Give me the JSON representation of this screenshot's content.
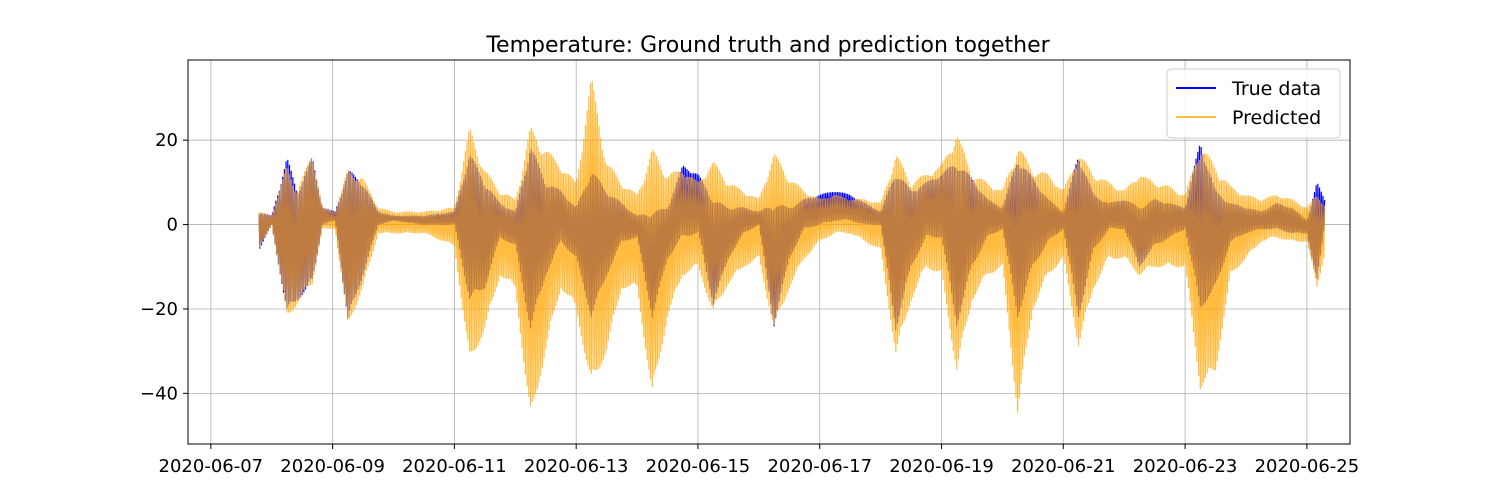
{
  "chart_data": {
    "type": "line",
    "title": "Temperature: Ground truth and prediction together",
    "xlabel": "",
    "ylabel": "",
    "x_range": [
      "2020-06-06T15:00",
      "2020-06-25T17:00"
    ],
    "ylim": [
      -52,
      39
    ],
    "grid": true,
    "legend_position": "top-right",
    "x_ticks": [
      "2020-06-07",
      "2020-06-09",
      "2020-06-11",
      "2020-06-13",
      "2020-06-15",
      "2020-06-17",
      "2020-06-19",
      "2020-06-21",
      "2020-06-23",
      "2020-06-25"
    ],
    "y_ticks": [
      20,
      0,
      -20,
      -40
    ],
    "y_tick_labels": [
      "20",
      "0",
      "−20",
      "−40"
    ],
    "series": [
      {
        "name": "True data",
        "color": "#0000ff",
        "envelope": {
          "x": [
            "2020-06-07T19:00",
            "2020-06-08T00:00",
            "2020-06-08T06:00",
            "2020-06-08T10:00",
            "2020-06-08T16:00",
            "2020-06-08T20:00",
            "2020-06-09T01:00",
            "2020-06-09T06:00",
            "2020-06-09T12:00",
            "2020-06-09T18:00",
            "2020-06-10T00:00",
            "2020-06-10T12:00",
            "2020-06-11T00:00",
            "2020-06-11T06:00",
            "2020-06-11T12:00",
            "2020-06-11T18:00",
            "2020-06-12T00:00",
            "2020-06-12T06:00",
            "2020-06-12T12:00",
            "2020-06-12T18:00",
            "2020-06-13T00:00",
            "2020-06-13T06:00",
            "2020-06-13T12:00",
            "2020-06-13T18:00",
            "2020-06-14T00:00",
            "2020-06-14T06:00",
            "2020-06-14T12:00",
            "2020-06-14T18:00",
            "2020-06-15T00:00",
            "2020-06-15T06:00",
            "2020-06-15T12:00",
            "2020-06-15T18:00",
            "2020-06-16T00:00",
            "2020-06-16T06:00",
            "2020-06-16T12:00",
            "2020-06-16T18:00",
            "2020-06-17T00:00",
            "2020-06-17T06:00",
            "2020-06-17T12:00",
            "2020-06-17T18:00",
            "2020-06-18T00:00",
            "2020-06-18T06:00",
            "2020-06-18T12:00",
            "2020-06-18T18:00",
            "2020-06-19T00:00",
            "2020-06-19T06:00",
            "2020-06-19T12:00",
            "2020-06-19T18:00",
            "2020-06-20T00:00",
            "2020-06-20T06:00",
            "2020-06-20T12:00",
            "2020-06-20T18:00",
            "2020-06-21T00:00",
            "2020-06-21T06:00",
            "2020-06-21T12:00",
            "2020-06-21T18:00",
            "2020-06-22T00:00",
            "2020-06-22T06:00",
            "2020-06-22T12:00",
            "2020-06-22T18:00",
            "2020-06-23T00:00",
            "2020-06-23T06:00",
            "2020-06-23T12:00",
            "2020-06-23T18:00",
            "2020-06-24T00:00",
            "2020-06-24T06:00",
            "2020-06-24T12:00",
            "2020-06-24T18:00",
            "2020-06-25T00:00",
            "2020-06-25T04:00",
            "2020-06-25T07:00"
          ],
          "max": [
            3,
            2,
            16,
            8,
            16,
            4,
            3,
            13,
            10,
            3,
            2,
            2,
            3,
            17,
            10,
            5,
            3,
            19,
            10,
            8,
            4,
            13,
            8,
            5,
            2,
            3,
            4,
            14,
            12,
            6,
            4,
            4,
            3,
            5,
            4,
            6,
            7,
            8,
            7,
            5,
            3,
            13,
            8,
            10,
            12,
            15,
            11,
            6,
            4,
            16,
            11,
            6,
            3,
            17,
            7,
            5,
            6,
            4,
            6,
            5,
            4,
            20,
            8,
            5,
            4,
            3,
            5,
            4,
            1,
            10,
            6
          ],
          "min": [
            -6,
            0,
            -21,
            -18,
            -14,
            0,
            1,
            -23,
            -12,
            0,
            1,
            0,
            0,
            -18,
            -15,
            -3,
            -5,
            -25,
            -12,
            -4,
            -8,
            -22,
            -12,
            -4,
            -3,
            -22,
            -8,
            -3,
            -2,
            -19,
            -8,
            -2,
            0,
            -24,
            -8,
            -1,
            0,
            1,
            1,
            0,
            0,
            -25,
            -10,
            -3,
            -3,
            -24,
            -10,
            -3,
            -1,
            -22,
            -10,
            -4,
            -1,
            -22,
            -6,
            -1,
            -1,
            -10,
            -5,
            -3,
            -1,
            -20,
            -15,
            -4,
            -2,
            -1,
            -1,
            -2,
            -2,
            -14,
            0
          ]
        }
      },
      {
        "name": "Predicted",
        "color": "#ffa500",
        "envelope": {
          "x": [
            "2020-06-07T19:00",
            "2020-06-08T00:00",
            "2020-06-08T06:00",
            "2020-06-08T10:00",
            "2020-06-08T16:00",
            "2020-06-08T20:00",
            "2020-06-09T01:00",
            "2020-06-09T06:00",
            "2020-06-09T12:00",
            "2020-06-09T18:00",
            "2020-06-10T00:00",
            "2020-06-10T12:00",
            "2020-06-11T00:00",
            "2020-06-11T06:00",
            "2020-06-11T12:00",
            "2020-06-11T18:00",
            "2020-06-12T00:00",
            "2020-06-12T06:00",
            "2020-06-12T12:00",
            "2020-06-12T18:00",
            "2020-06-13T00:00",
            "2020-06-13T06:00",
            "2020-06-13T12:00",
            "2020-06-13T18:00",
            "2020-06-14T00:00",
            "2020-06-14T06:00",
            "2020-06-14T12:00",
            "2020-06-14T18:00",
            "2020-06-15T00:00",
            "2020-06-15T06:00",
            "2020-06-15T12:00",
            "2020-06-15T18:00",
            "2020-06-16T00:00",
            "2020-06-16T06:00",
            "2020-06-16T12:00",
            "2020-06-16T18:00",
            "2020-06-17T00:00",
            "2020-06-17T06:00",
            "2020-06-17T12:00",
            "2020-06-17T18:00",
            "2020-06-18T00:00",
            "2020-06-18T06:00",
            "2020-06-18T12:00",
            "2020-06-18T18:00",
            "2020-06-19T00:00",
            "2020-06-19T06:00",
            "2020-06-19T12:00",
            "2020-06-19T18:00",
            "2020-06-20T00:00",
            "2020-06-20T06:00",
            "2020-06-20T12:00",
            "2020-06-20T18:00",
            "2020-06-21T00:00",
            "2020-06-21T06:00",
            "2020-06-21T12:00",
            "2020-06-21T18:00",
            "2020-06-22T00:00",
            "2020-06-22T06:00",
            "2020-06-22T12:00",
            "2020-06-22T18:00",
            "2020-06-23T00:00",
            "2020-06-23T06:00",
            "2020-06-23T12:00",
            "2020-06-23T18:00",
            "2020-06-24T00:00",
            "2020-06-24T06:00",
            "2020-06-24T12:00",
            "2020-06-24T18:00",
            "2020-06-25T00:00",
            "2020-06-25T04:00",
            "2020-06-25T07:00"
          ],
          "max": [
            3,
            2,
            14,
            8,
            17,
            4,
            3,
            13,
            11,
            4,
            3,
            3,
            4,
            23,
            13,
            8,
            6,
            23,
            18,
            14,
            10,
            35,
            15,
            10,
            7,
            18,
            12,
            13,
            10,
            15,
            10,
            8,
            6,
            17,
            11,
            8,
            6,
            7,
            6,
            6,
            5,
            17,
            10,
            12,
            14,
            22,
            12,
            10,
            8,
            19,
            13,
            12,
            8,
            17,
            12,
            10,
            8,
            12,
            10,
            9,
            7,
            19,
            14,
            9,
            7,
            6,
            7,
            6,
            4,
            7,
            5
          ],
          "min": [
            -6,
            0,
            -22,
            -19,
            -14,
            -1,
            -1,
            -24,
            -15,
            -2,
            -2,
            -2,
            -5,
            -33,
            -25,
            -12,
            -15,
            -47,
            -30,
            -15,
            -20,
            -39,
            -30,
            -15,
            -15,
            -41,
            -22,
            -12,
            -10,
            -21,
            -14,
            -10,
            -8,
            -25,
            -15,
            -8,
            -4,
            -2,
            -2,
            -4,
            -6,
            -31,
            -18,
            -10,
            -12,
            -35,
            -18,
            -12,
            -10,
            -45,
            -20,
            -12,
            -8,
            -29,
            -15,
            -8,
            -8,
            -12,
            -10,
            -10,
            -10,
            -39,
            -35,
            -12,
            -8,
            -4,
            -3,
            -4,
            -4,
            -15,
            -7
          ]
        }
      }
    ]
  }
}
